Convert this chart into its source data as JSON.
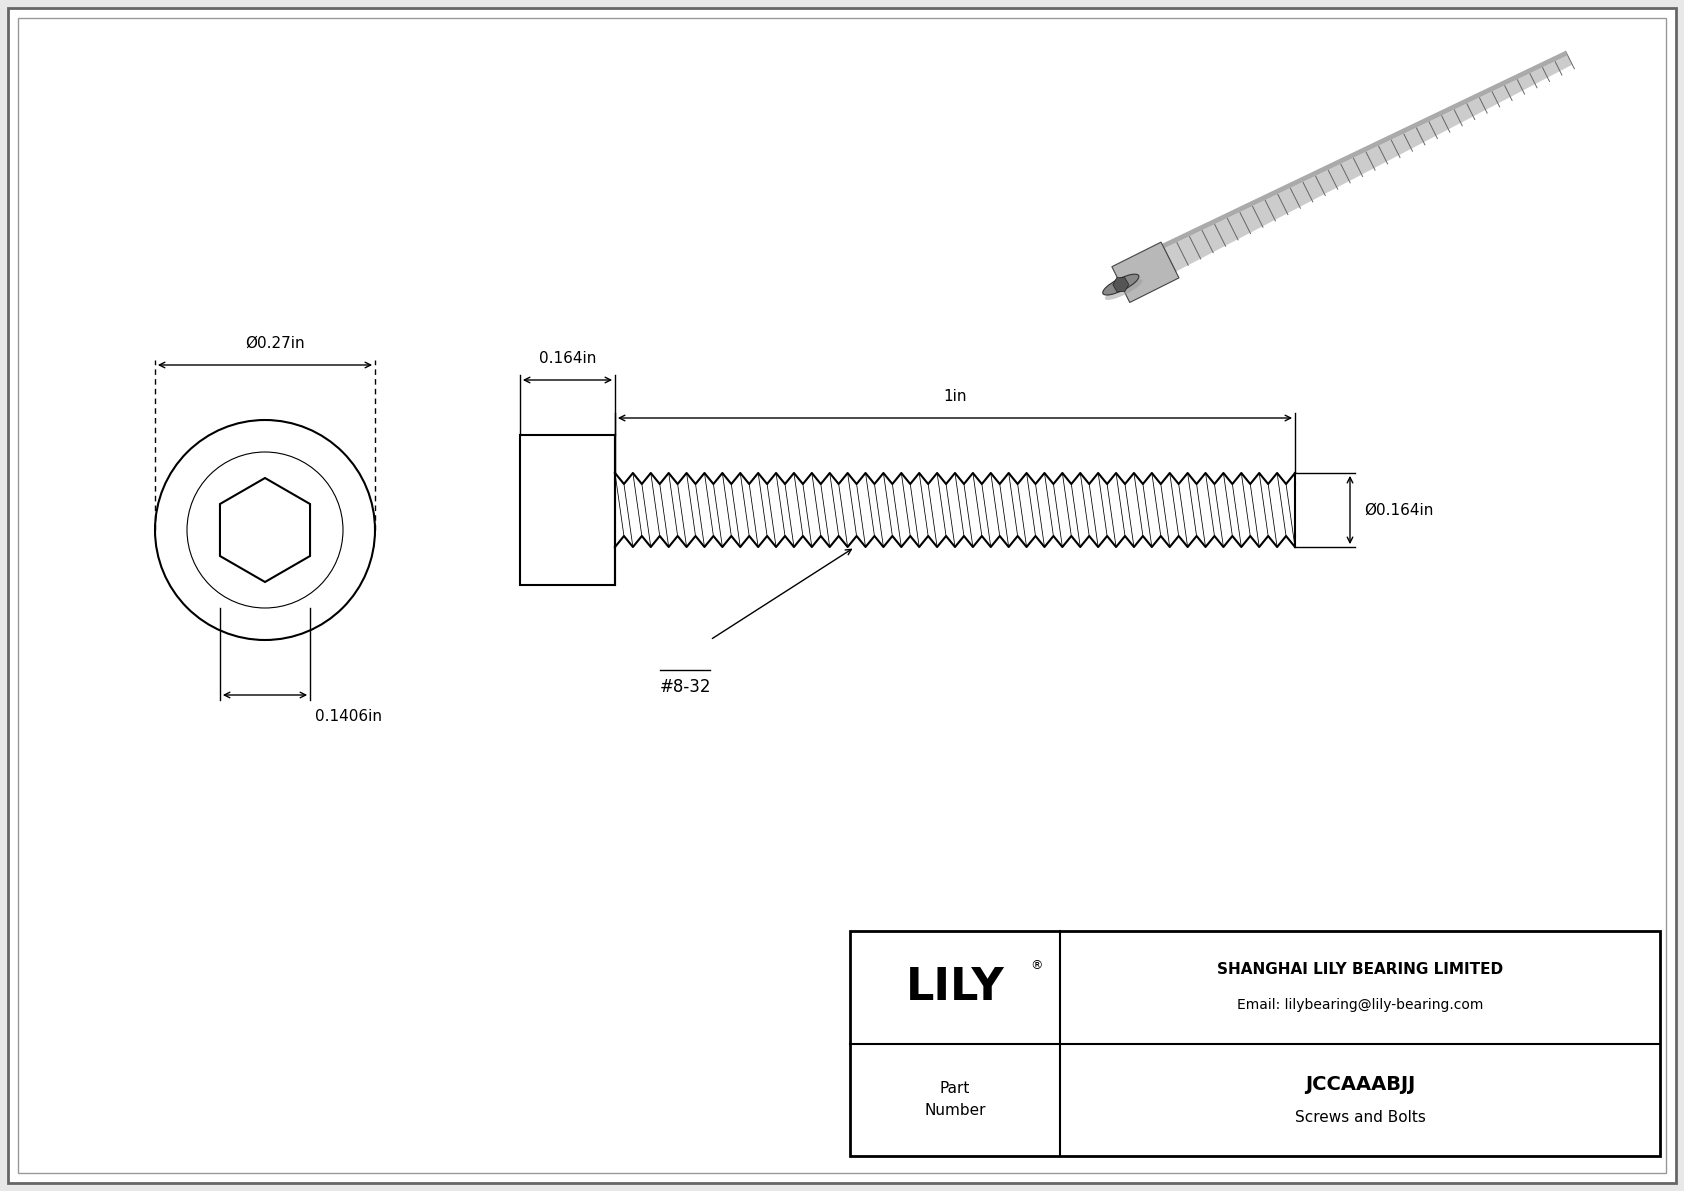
{
  "bg_color": "#e8e8e8",
  "drawing_bg": "#ffffff",
  "line_color": "#000000",
  "dim_color": "#000000",
  "part_number": "JCCAAABJJ",
  "category": "Screws and Bolts",
  "company": "SHANGHAI LILY BEARING LIMITED",
  "email": "Email: lilybearing@lily-bearing.com",
  "dim_head_width": "0.27in",
  "dim_hex_width": "0.1406in",
  "dim_shank_dia": "0.164in",
  "dim_thread_len": "1in",
  "thread_label": "#8-32",
  "table_border_color": "#000000",
  "outer_border_color": "#666666"
}
